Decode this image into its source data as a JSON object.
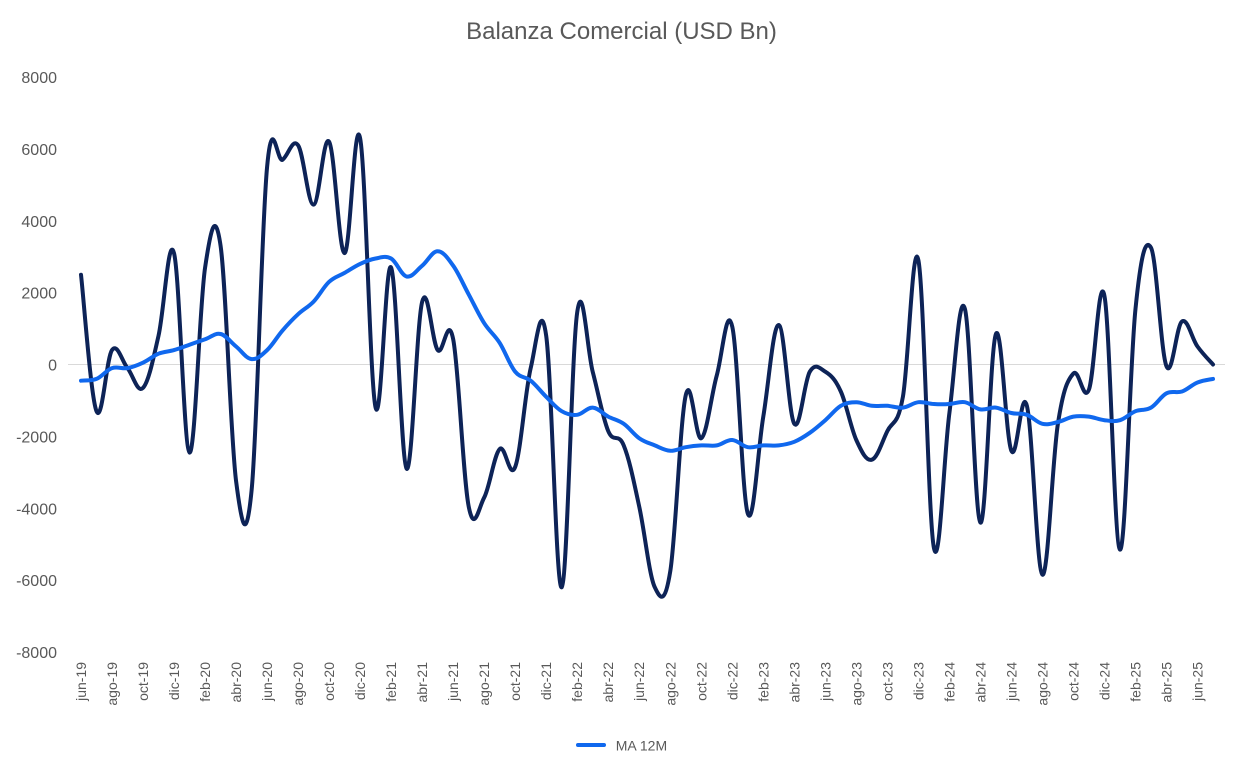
{
  "chart_data": {
    "type": "line",
    "title": "Balanza Comercial (USD Bn)",
    "xlabel": "",
    "ylabel": "",
    "ylim": [
      -8000,
      8000
    ],
    "yticks": [
      -8000,
      -6000,
      -4000,
      -2000,
      0,
      2000,
      4000,
      6000,
      8000
    ],
    "grid": false,
    "legend_position": "bottom",
    "x_tick_labels": [
      "jun-19",
      "ago-19",
      "oct-19",
      "dic-19",
      "feb-20",
      "abr-20",
      "jun-20",
      "ago-20",
      "oct-20",
      "dic-20",
      "feb-21",
      "abr-21",
      "jun-21",
      "ago-21",
      "oct-21",
      "dic-21",
      "feb-22",
      "abr-22",
      "jun-22",
      "ago-22",
      "oct-22",
      "dic-22",
      "feb-23",
      "abr-23",
      "jun-23",
      "ago-23",
      "oct-23",
      "dic-23",
      "feb-24",
      "abr-24",
      "jun-24",
      "ago-24",
      "oct-24",
      "dic-24",
      "feb-25",
      "abr-25",
      "jun-25"
    ],
    "x": [
      "jun-19",
      "jul-19",
      "ago-19",
      "sep-19",
      "oct-19",
      "nov-19",
      "dic-19",
      "ene-20",
      "feb-20",
      "mar-20",
      "abr-20",
      "may-20",
      "jun-20",
      "jul-20",
      "ago-20",
      "sep-20",
      "oct-20",
      "nov-20",
      "dic-20",
      "ene-21",
      "feb-21",
      "mar-21",
      "abr-21",
      "may-21",
      "jun-21",
      "jul-21",
      "ago-21",
      "sep-21",
      "oct-21",
      "nov-21",
      "dic-21",
      "ene-22",
      "feb-22",
      "mar-22",
      "abr-22",
      "may-22",
      "jun-22",
      "jul-22",
      "ago-22",
      "sep-22",
      "oct-22",
      "nov-22",
      "dic-22",
      "ene-23",
      "feb-23",
      "mar-23",
      "abr-23",
      "may-23",
      "jun-23",
      "jul-23",
      "ago-23",
      "sep-23",
      "oct-23",
      "nov-23",
      "dic-23",
      "ene-24",
      "feb-24",
      "mar-24",
      "abr-24",
      "may-24",
      "jun-24",
      "jul-24",
      "ago-24",
      "sep-24",
      "oct-24",
      "nov-24",
      "dic-24",
      "ene-25",
      "feb-25",
      "mar-25",
      "abr-25",
      "may-25",
      "jun-25",
      "jul-25"
    ],
    "series": [
      {
        "color": "#0d2357",
        "values": [
          2500,
          -1300,
          400,
          -100,
          -650,
          800,
          3100,
          -2450,
          2700,
          3300,
          -3250,
          -3500,
          5500,
          5700,
          6100,
          4450,
          6200,
          3100,
          6300,
          -1200,
          2700,
          -2900,
          1750,
          400,
          700,
          -3950,
          -3700,
          -2350,
          -2850,
          -100,
          800,
          -6200,
          1450,
          -200,
          -1850,
          -2250,
          -3950,
          -6200,
          -5750,
          -850,
          -2050,
          -300,
          1050,
          -4150,
          -1450,
          1100,
          -1650,
          -200,
          -200,
          -750,
          -2100,
          -2650,
          -1850,
          -900,
          2900,
          -5100,
          -1350,
          1550,
          -4400,
          850,
          -2400,
          -1150,
          -5850,
          -1650,
          -250,
          -700,
          1900,
          -5150,
          1550,
          3250,
          -50,
          1200,
          500,
          0
        ]
      },
      {
        "name": "MA 12M",
        "color": "#1068ee",
        "values": [
          -450,
          -400,
          -100,
          -100,
          50,
          300,
          400,
          550,
          700,
          850,
          500,
          150,
          400,
          950,
          1400,
          1750,
          2300,
          2550,
          2800,
          2950,
          2950,
          2450,
          2750,
          3150,
          2750,
          1950,
          1150,
          600,
          -200,
          -450,
          -900,
          -1300,
          -1400,
          -1200,
          -1450,
          -1650,
          -2050,
          -2250,
          -2400,
          -2300,
          -2250,
          -2250,
          -2100,
          -2300,
          -2250,
          -2250,
          -2150,
          -1900,
          -1550,
          -1150,
          -1050,
          -1150,
          -1150,
          -1200,
          -1050,
          -1100,
          -1100,
          -1050,
          -1250,
          -1200,
          -1350,
          -1400,
          -1650,
          -1600,
          -1450,
          -1450,
          -1550,
          -1550,
          -1300,
          -1200,
          -800,
          -750,
          -500,
          -400
        ]
      }
    ]
  }
}
